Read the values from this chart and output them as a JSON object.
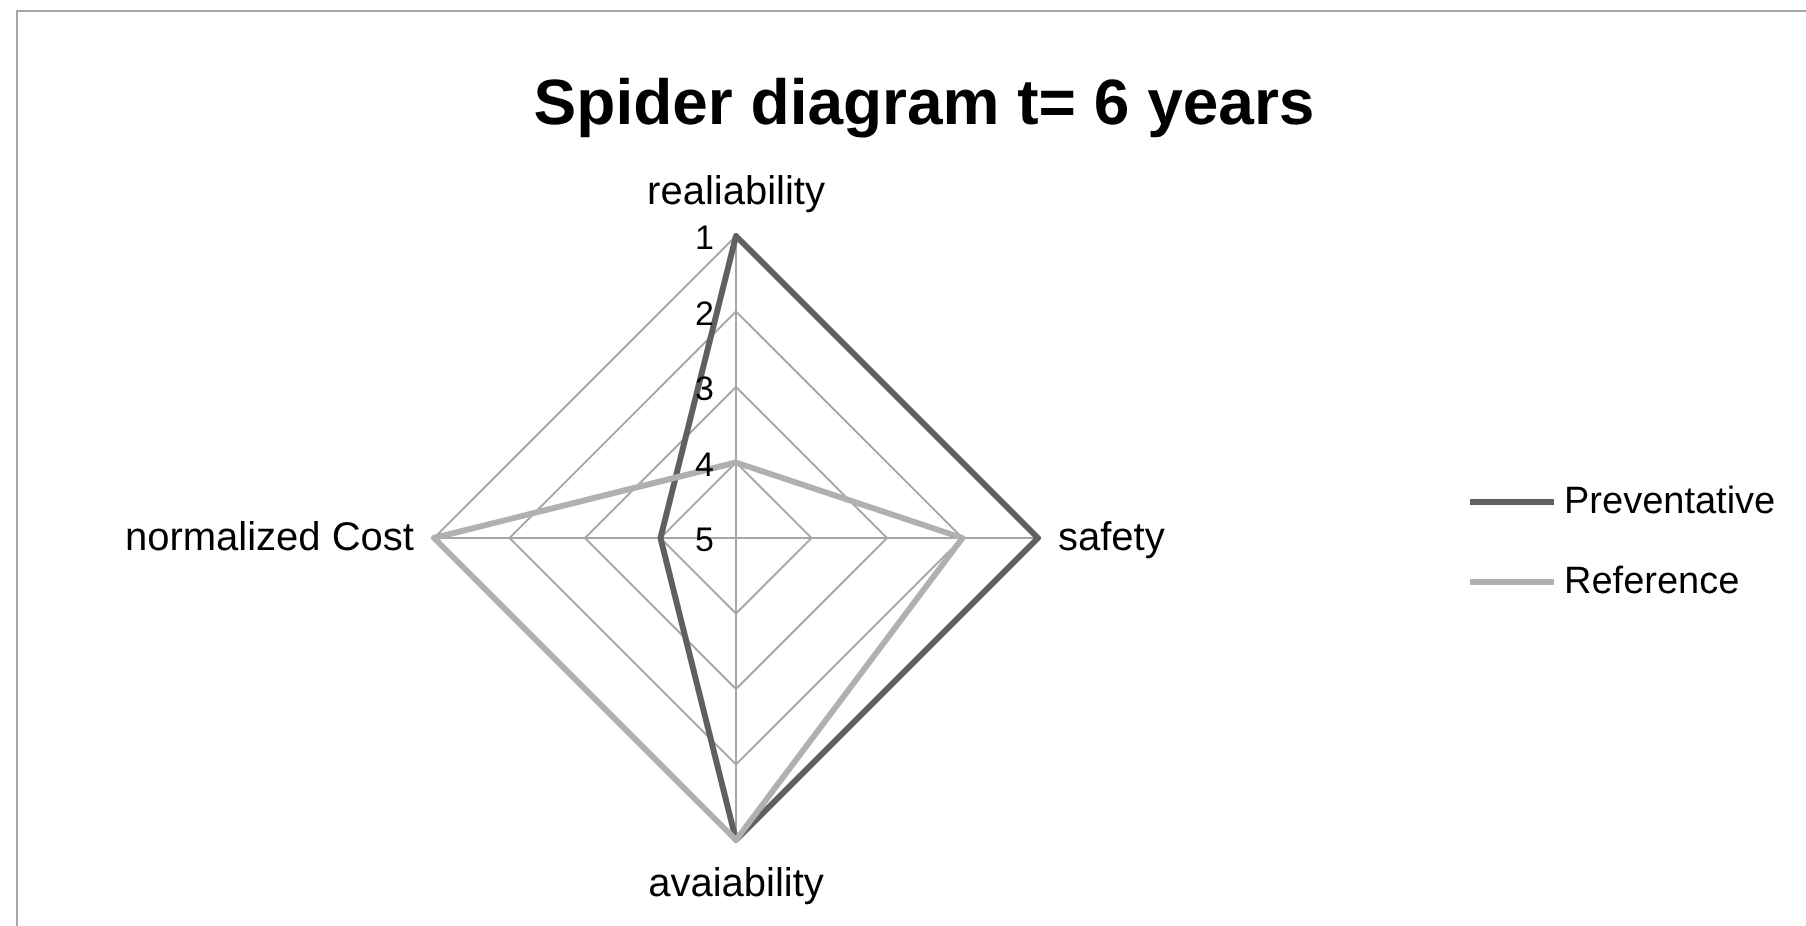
{
  "chart_data": {
    "type": "radar",
    "title": "Spider diagram t= 6 years",
    "categories": [
      "realiability",
      "safety",
      "avaiability",
      "normalized Cost"
    ],
    "series": [
      {
        "name": "Preventative",
        "color": "#606060",
        "values": [
          1,
          1,
          1,
          4
        ]
      },
      {
        "name": "Reference",
        "color": "#b0b0b0",
        "values": [
          4,
          2,
          1,
          1
        ]
      }
    ],
    "ylim": [
      5,
      1
    ],
    "yticks": [
      1,
      2,
      3,
      4,
      5
    ],
    "grid": true,
    "legend": "right"
  }
}
